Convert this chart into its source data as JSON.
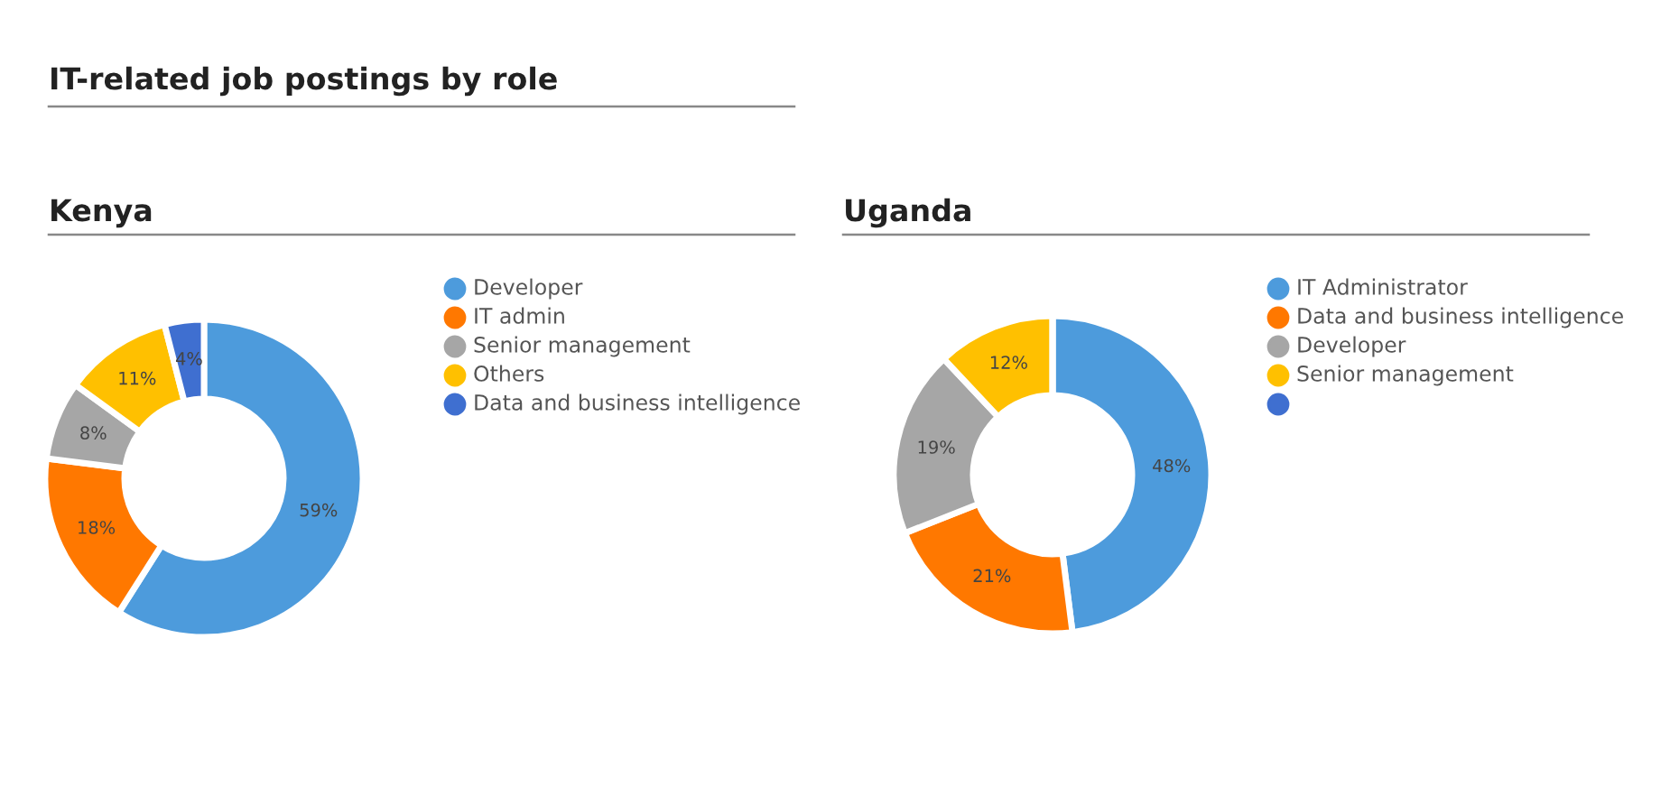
{
  "chart_data": [
    {
      "type": "donut",
      "title": "Kenya",
      "annotations": [
        "IT-related job postings by role"
      ],
      "categories": [
        "Developer",
        "IT admin",
        "Senior management",
        "Others",
        "Data and business intelligence"
      ],
      "values": [
        59,
        18,
        8,
        11,
        4
      ],
      "colors": [
        "#4d9bdc",
        "#ff7800",
        "#a6a6a6",
        "#ffc000",
        "#3f6fd0"
      ],
      "value_labels": [
        "59%",
        "18%",
        "8%",
        "11%",
        "4%"
      ],
      "legend": "right"
    },
    {
      "type": "donut",
      "title": "Uganda",
      "categories": [
        "IT Administrator",
        "Data and business intelligence",
        "Developer",
        "Senior management",
        null
      ],
      "values": [
        48,
        21,
        19,
        12,
        0
      ],
      "colors": [
        "#4d9bdc",
        "#ff7800",
        "#a6a6a6",
        "#ffc000",
        "#3f6fd0"
      ],
      "value_labels": [
        "48%",
        "21%",
        "19%",
        "12%",
        null
      ],
      "legend": "right"
    }
  ]
}
